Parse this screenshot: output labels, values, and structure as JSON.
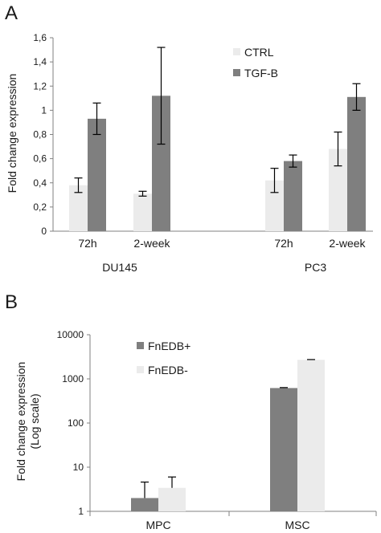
{
  "panels": [
    {
      "label": "A",
      "chart_data": {
        "type": "bar",
        "ylabel": "Fold change expression",
        "ylim": [
          0,
          1.6
        ],
        "yticks": [
          "0",
          "0,2",
          "0,4",
          "0,6",
          "0,8",
          "1",
          "1,2",
          "1,4",
          "1,6"
        ],
        "groups": [
          {
            "name": "DU145",
            "categories": [
              "72h",
              "2-week"
            ]
          },
          {
            "name": "PC3",
            "categories": [
              "72h",
              "2-week"
            ]
          }
        ],
        "series": [
          {
            "name": "CTRL",
            "color": "#ebebeb",
            "values": [
              0.38,
              0.31,
              0.42,
              0.68
            ],
            "errors": [
              0.06,
              0.02,
              0.1,
              0.14
            ]
          },
          {
            "name": "TGF-B",
            "color": "#7f7f7f",
            "values": [
              0.93,
              1.12,
              0.58,
              1.11
            ],
            "errors": [
              0.13,
              0.4,
              0.05,
              0.11
            ]
          }
        ],
        "legend": "top-right",
        "grid": false
      }
    },
    {
      "label": "B",
      "chart_data": {
        "type": "bar",
        "ylabel": [
          "Fold change expression",
          "(Log scale)"
        ],
        "yscale": "log",
        "ylim": [
          1,
          10000
        ],
        "yticks": [
          "1",
          "10",
          "100",
          "1000",
          "10000"
        ],
        "categories": [
          "MPC",
          "MSC"
        ],
        "series": [
          {
            "name": "FnEDB+",
            "color": "#7f7f7f",
            "values": [
              2.0,
              620
            ],
            "errors": [
              2.6,
              15
            ]
          },
          {
            "name": "FnEDB-",
            "color": "#ebebeb",
            "values": [
              3.4,
              2700
            ],
            "errors": [
              2.6,
              40
            ]
          }
        ],
        "legend": "top-left",
        "grid": false
      }
    }
  ]
}
